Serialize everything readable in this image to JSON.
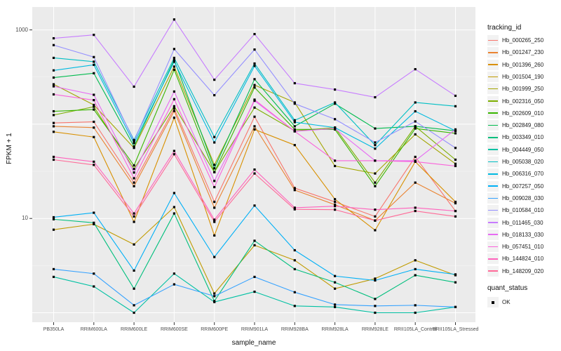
{
  "chart_data": {
    "type": "line",
    "title": "",
    "xlabel": "sample_name",
    "ylabel": "FPKM + 1",
    "y_scale": "log10",
    "y_ticks": [
      {
        "label": "1000",
        "value": 1000
      },
      {
        "label": "10",
        "value": 10
      }
    ],
    "y_gridlines": [
      1,
      10,
      100,
      1000
    ],
    "ylim": [
      0.85,
      1750
    ],
    "panel_bg": "#EBEBEB",
    "grid_color": "#FFFFFF",
    "point_color": "#000000",
    "point_shape": "square",
    "legend_position": "right",
    "categories": [
      "PB350LA",
      "RRIM600LA",
      "RRIM600LE",
      "RRIM600SE",
      "RRIM600PE",
      "RRIM901LA",
      "RRIM928BA",
      "RRIM928LA",
      "RRIM928LE",
      "RRII105LA_Control",
      "RRII105LA_Stressed"
    ],
    "series": [
      {
        "name": "Hb_000265_250",
        "color": "#F8766D",
        "values": [
          103,
          106,
          24,
          147,
          15,
          120,
          21,
          15,
          10.5,
          45,
          12
        ]
      },
      {
        "name": "Hb_001247_230",
        "color": "#EA8331",
        "values": [
          95,
          92,
          22,
          138,
          13,
          95,
          20,
          14,
          9.5,
          24,
          14.5
        ]
      },
      {
        "name": "Hb_001396_260",
        "color": "#D89000",
        "values": [
          83,
          73,
          9.2,
          117,
          6.6,
          88,
          60,
          16,
          7.5,
          40,
          15
        ]
      },
      {
        "name": "Hb_001504_190",
        "color": "#C09B00",
        "values": [
          7.6,
          8.7,
          5.3,
          13.2,
          1.6,
          5.2,
          3.6,
          1.8,
          2.3,
          3.6,
          2.5
        ]
      },
      {
        "name": "Hb_001999_250",
        "color": "#A3A500",
        "values": [
          265,
          160,
          56,
          408,
          37,
          260,
          170,
          36,
          30,
          78,
          38
        ]
      },
      {
        "name": "Hb_002316_050",
        "color": "#7CAE00",
        "values": [
          125,
          153,
          33.5,
          155,
          31,
          150,
          85,
          92,
          24,
          95,
          42
        ]
      },
      {
        "name": "Hb_002609_010",
        "color": "#39B600",
        "values": [
          137,
          143,
          36.5,
          378,
          31,
          245,
          88,
          88,
          22,
          90,
          80
        ]
      },
      {
        "name": "Hb_002849_080",
        "color": "#00BB4E",
        "values": [
          312,
          347,
          58,
          480,
          34,
          300,
          95,
          165,
          90,
          95,
          85
        ]
      },
      {
        "name": "Hb_003349_010",
        "color": "#00BF7D",
        "values": [
          9.8,
          9.0,
          1.8,
          11.3,
          1.33,
          5.8,
          2.9,
          2.1,
          1.4,
          2.5,
          2.1
        ]
      },
      {
        "name": "Hb_004449_050",
        "color": "#00C1A3",
        "values": [
          2.4,
          1.9,
          1.0,
          2.6,
          1.3,
          1.67,
          1.18,
          1.15,
          1.0,
          1.0,
          1.15
        ]
      },
      {
        "name": "Hb_005038_020",
        "color": "#00BFC4",
        "values": [
          505,
          460,
          68,
          505,
          73,
          440,
          110,
          170,
          60,
          170,
          155
        ]
      },
      {
        "name": "Hb_006316_070",
        "color": "#00BAE0",
        "values": [
          372,
          426,
          63,
          460,
          64,
          415,
          105,
          92,
          55,
          137,
          85
        ]
      },
      {
        "name": "Hb_007257_050",
        "color": "#00B0F6",
        "values": [
          10.3,
          11.5,
          2.8,
          18.6,
          3.9,
          13.7,
          4.6,
          2.45,
          2.2,
          2.9,
          2.55
        ]
      },
      {
        "name": "Hb_009028_030",
        "color": "#35A2FF",
        "values": [
          2.9,
          2.6,
          1.2,
          2.0,
          1.5,
          2.4,
          1.65,
          1.22,
          1.18,
          1.2,
          1.15
        ]
      },
      {
        "name": "Hb_010584_010",
        "color": "#9590FF",
        "values": [
          690,
          515,
          66,
          627,
          203,
          619,
          165,
          113,
          64,
          107,
          56
        ]
      },
      {
        "name": "Hb_011465_030",
        "color": "#C77CFF",
        "values": [
          815,
          886,
          250,
          1290,
          296,
          903,
          272,
          233,
          193,
          383,
          200
        ]
      },
      {
        "name": "Hb_018133_030",
        "color": "#E76BF3",
        "values": [
          252,
          205,
          30.7,
          222,
          25,
          177,
          84,
          90,
          41,
          41,
          88
        ]
      },
      {
        "name": "Hb_057451_010",
        "color": "#FA62DB",
        "values": [
          207,
          180,
          26.7,
          184,
          21.5,
          182,
          84,
          41,
          41,
          40,
          36
        ]
      },
      {
        "name": "Hb_144824_010",
        "color": "#FF62BC",
        "values": [
          45,
          40,
          11.3,
          52,
          9.7,
          33,
          13,
          13.5,
          12.4,
          13,
          12
        ]
      },
      {
        "name": "Hb_148209_020",
        "color": "#FF6A98",
        "values": [
          42,
          37,
          10.5,
          48,
          9.2,
          30,
          12.5,
          12.4,
          9.5,
          12,
          10.5
        ]
      }
    ],
    "legend": {
      "title": "tracking_id"
    },
    "legend2": {
      "title": "quant_status",
      "entries": [
        {
          "label": "OK",
          "marker": "square",
          "color": "#000000"
        }
      ]
    }
  }
}
